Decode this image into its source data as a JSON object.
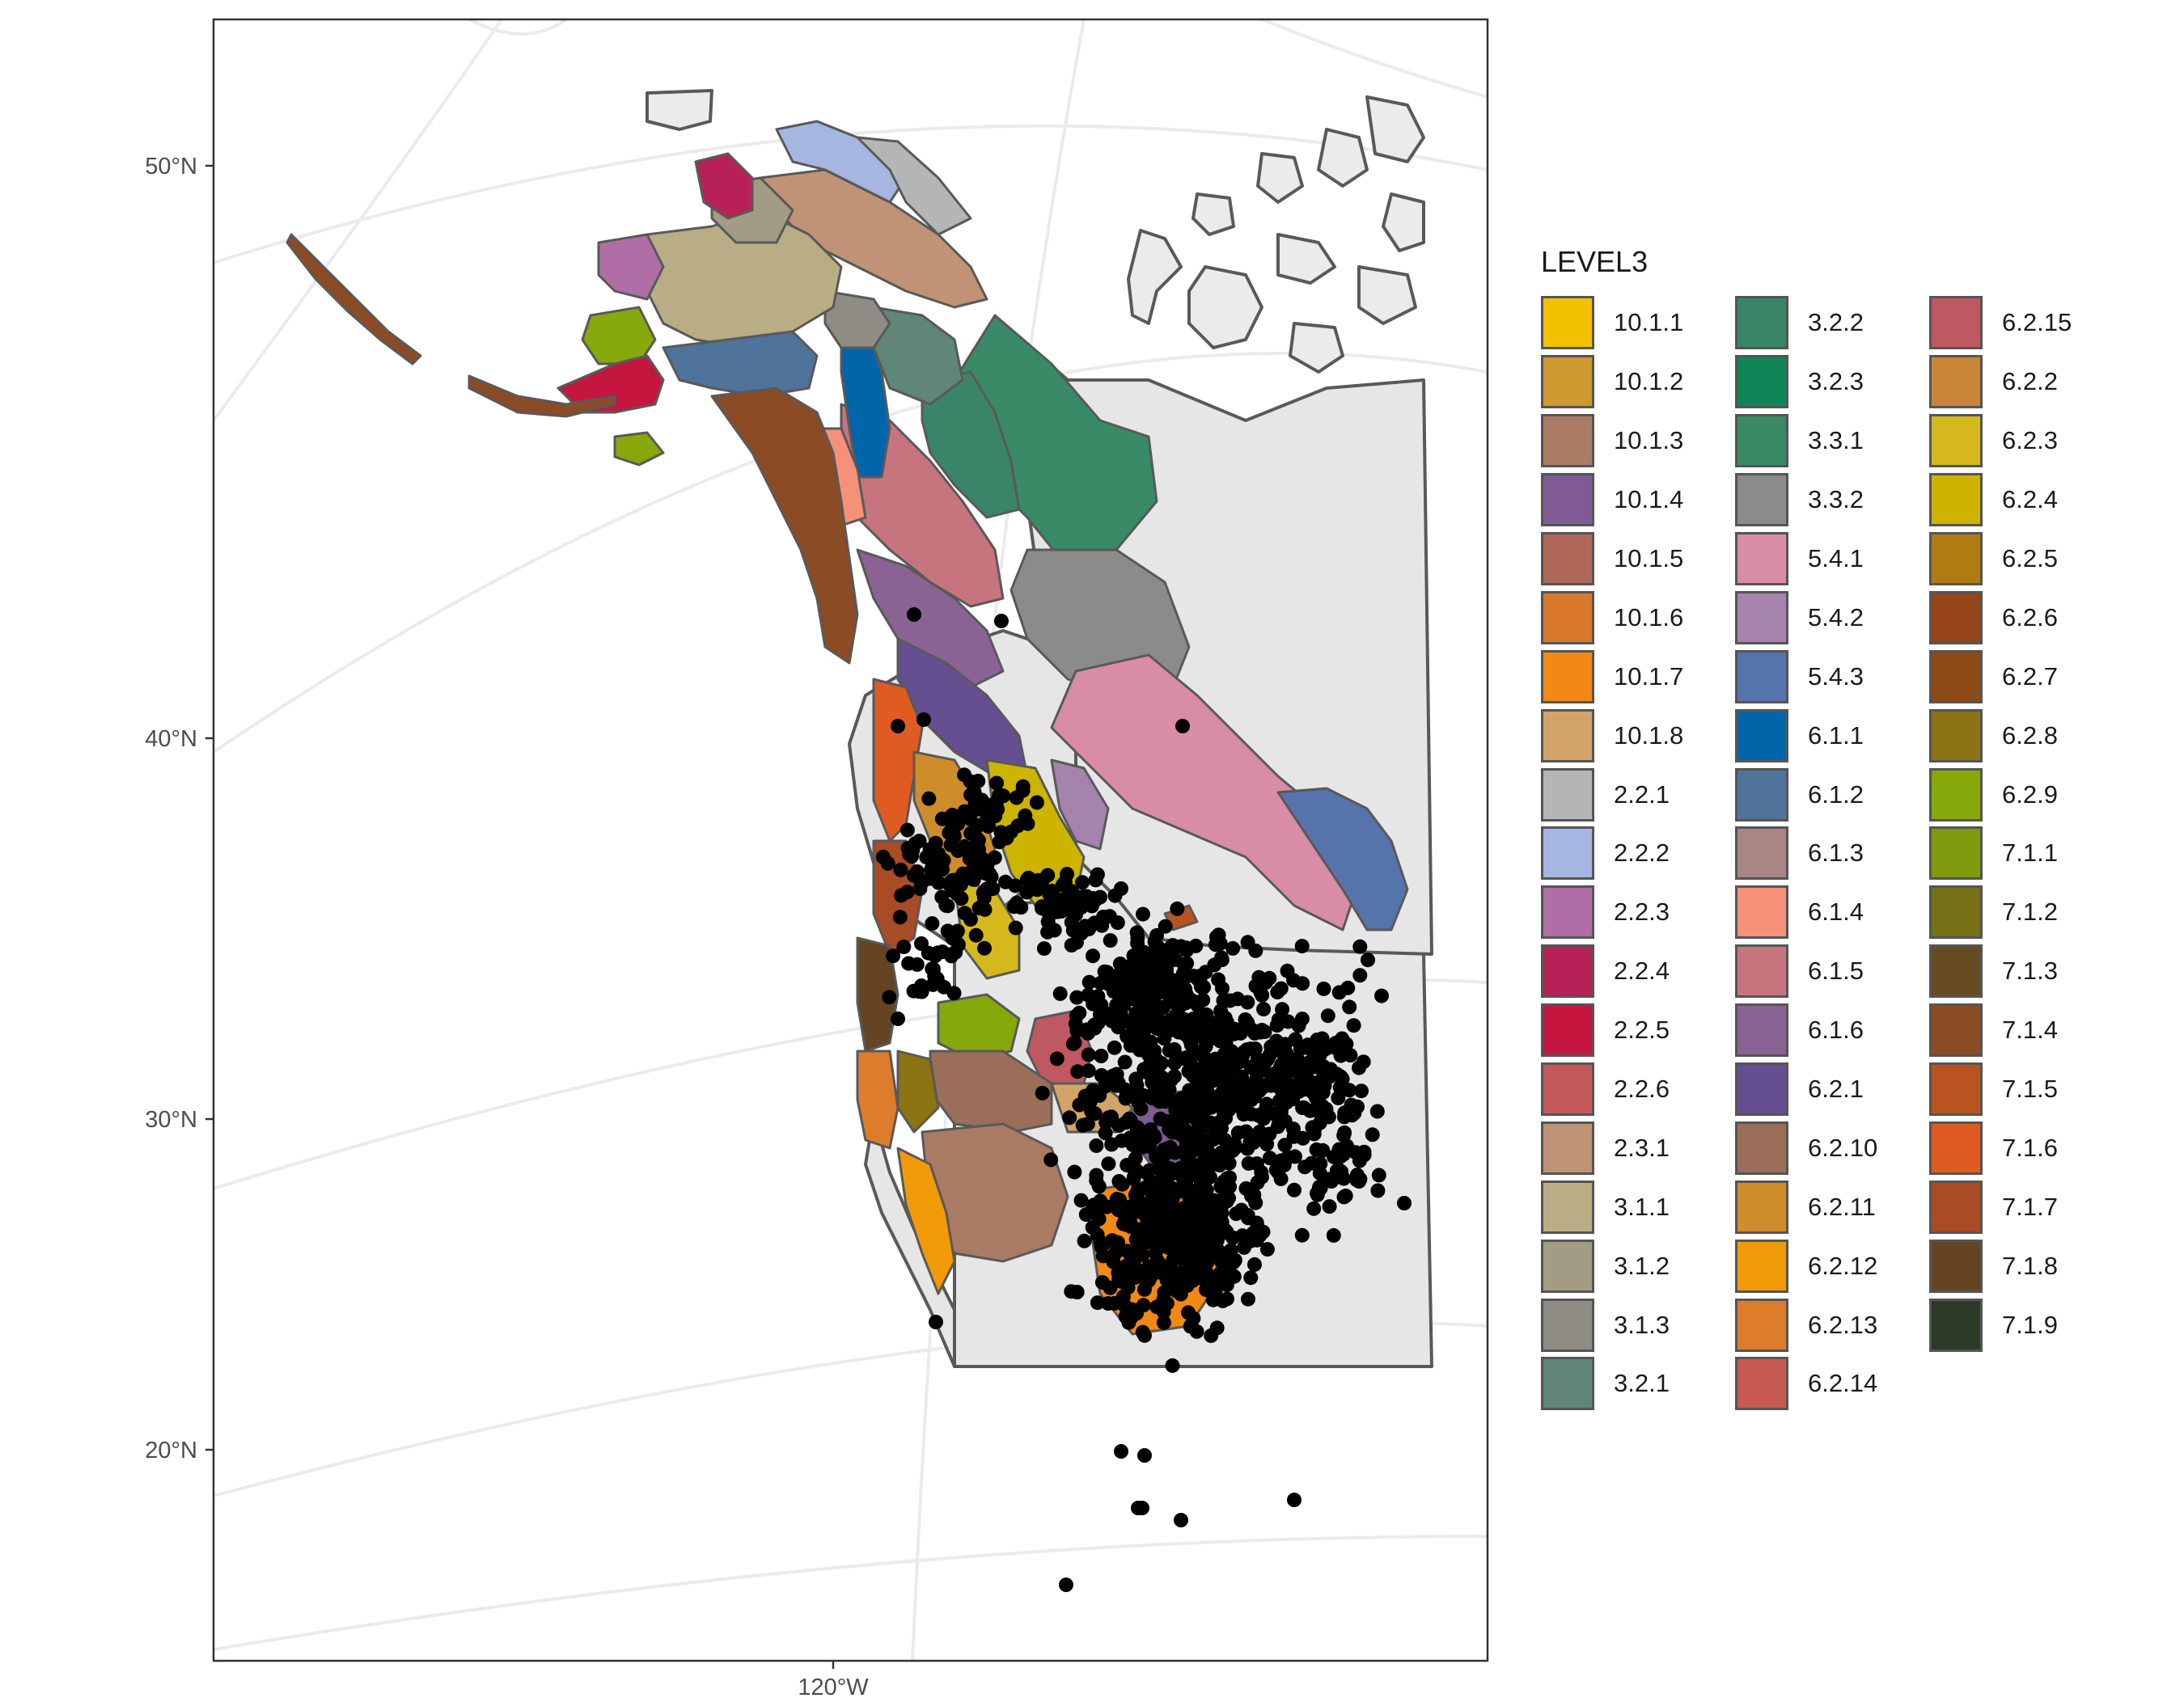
{
  "map": {
    "latitude_labels": [
      "50°N",
      "40°N",
      "30°N",
      "20°N"
    ],
    "longitude_labels": [
      "120°W"
    ],
    "background": "#ffffff",
    "land_fill": "#e6e6e6",
    "border_color": "#595959",
    "graticule_color": "#ebebeb",
    "point_color": "#000000"
  },
  "legend": {
    "title": "LEVEL3",
    "columns": [
      [
        {
          "label": "10.1.1",
          "color": "#f2c200"
        },
        {
          "label": "10.1.2",
          "color": "#cc9a2e"
        },
        {
          "label": "10.1.3",
          "color": "#a97b65"
        },
        {
          "label": "10.1.4",
          "color": "#7f5a93"
        },
        {
          "label": "10.1.5",
          "color": "#b1675a"
        },
        {
          "label": "10.1.6",
          "color": "#d9782b"
        },
        {
          "label": "10.1.7",
          "color": "#f28914"
        },
        {
          "label": "10.1.8",
          "color": "#d3a467"
        },
        {
          "label": "2.2.1",
          "color": "#b3b6b4"
        },
        {
          "label": "2.2.2",
          "color": "#a5b6e1"
        },
        {
          "label": "2.2.3",
          "color": "#b06ea6"
        },
        {
          "label": "2.2.4",
          "color": "#b82158"
        },
        {
          "label": "2.2.5",
          "color": "#c5163f"
        },
        {
          "label": "2.2.6",
          "color": "#c3595a"
        },
        {
          "label": "2.3.1",
          "color": "#c09376"
        },
        {
          "label": "3.1.1",
          "color": "#b9ad86"
        },
        {
          "label": "3.1.2",
          "color": "#a39c84"
        },
        {
          "label": "3.1.3",
          "color": "#8f8c85"
        },
        {
          "label": "3.2.1",
          "color": "#5f8677"
        }
      ],
      [
        {
          "label": "3.2.2",
          "color": "#3a8568"
        },
        {
          "label": "3.2.3",
          "color": "#0e8658"
        },
        {
          "label": "3.3.1",
          "color": "#398a67"
        },
        {
          "label": "3.3.2",
          "color": "#8b8b89"
        },
        {
          "label": "5.4.1",
          "color": "#d98ca6"
        },
        {
          "label": "5.4.2",
          "color": "#a483ad"
        },
        {
          "label": "5.4.3",
          "color": "#5474ab"
        },
        {
          "label": "6.1.1",
          "color": "#0065a9"
        },
        {
          "label": "6.1.2",
          "color": "#4f739a"
        },
        {
          "label": "6.1.3",
          "color": "#a98584"
        },
        {
          "label": "6.1.4",
          "color": "#f59179"
        },
        {
          "label": "6.1.5",
          "color": "#c6757f"
        },
        {
          "label": "6.1.6",
          "color": "#8a6293"
        },
        {
          "label": "6.2.1",
          "color": "#654f91"
        },
        {
          "label": "6.2.10",
          "color": "#9a6e59"
        },
        {
          "label": "6.2.11",
          "color": "#cf8c2b"
        },
        {
          "label": "6.2.12",
          "color": "#f19a07"
        },
        {
          "label": "6.2.13",
          "color": "#dd7d2c"
        },
        {
          "label": "6.2.14",
          "color": "#c65a52"
        }
      ],
      [
        {
          "label": "6.2.15",
          "color": "#bf5860"
        },
        {
          "label": "6.2.2",
          "color": "#c8853a"
        },
        {
          "label": "6.2.3",
          "color": "#d5b91c"
        },
        {
          "label": "6.2.4",
          "color": "#ccb400"
        },
        {
          "label": "6.2.5",
          "color": "#b07d11"
        },
        {
          "label": "6.2.6",
          "color": "#964419"
        },
        {
          "label": "6.2.7",
          "color": "#8d4a17"
        },
        {
          "label": "6.2.8",
          "color": "#8c7313"
        },
        {
          "label": "6.2.9",
          "color": "#86a80b"
        },
        {
          "label": "7.1.1",
          "color": "#7f9a0c"
        },
        {
          "label": "7.1.2",
          "color": "#767117"
        },
        {
          "label": "7.1.3",
          "color": "#674c22"
        },
        {
          "label": "7.1.4",
          "color": "#8b4b24"
        },
        {
          "label": "7.1.5",
          "color": "#b8541f"
        },
        {
          "label": "7.1.6",
          "color": "#e05b22"
        },
        {
          "label": "7.1.7",
          "color": "#a94b25"
        },
        {
          "label": "7.1.8",
          "color": "#654424"
        },
        {
          "label": "7.1.9",
          "color": "#2c3b27"
        }
      ]
    ]
  }
}
